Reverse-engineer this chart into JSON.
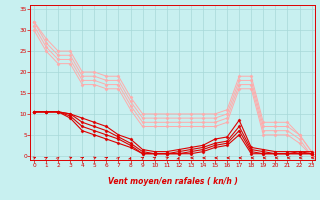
{
  "background_color": "#c8f0f0",
  "grid_color": "#a8d8d8",
  "line_color_dark": "#dd0000",
  "line_color_light": "#ffaaaa",
  "xlabel": "Vent moyen/en rafales ( kn/h )",
  "xlim": [
    -0.3,
    23.3
  ],
  "ylim": [
    -1,
    36
  ],
  "yticks": [
    0,
    5,
    10,
    15,
    20,
    25,
    30,
    35
  ],
  "xticks": [
    0,
    1,
    2,
    3,
    4,
    5,
    6,
    7,
    8,
    9,
    10,
    11,
    12,
    13,
    14,
    15,
    16,
    17,
    18,
    19,
    20,
    21,
    22,
    23
  ],
  "series_light": [
    [
      32,
      28,
      25,
      25,
      20,
      20,
      19,
      19,
      14,
      10,
      10,
      10,
      10,
      10,
      10,
      10,
      11,
      19,
      19,
      8,
      8,
      8,
      5,
      1
    ],
    [
      32,
      27,
      24,
      24,
      19,
      19,
      18,
      18,
      13,
      9,
      9,
      9,
      9,
      9,
      9,
      9,
      10,
      18,
      18,
      7,
      7,
      7,
      5,
      1
    ],
    [
      31,
      26,
      23,
      23,
      18,
      18,
      17,
      17,
      12,
      8,
      8,
      8,
      8,
      8,
      8,
      8,
      9,
      17,
      17,
      6,
      6,
      6,
      4,
      0
    ],
    [
      30,
      25,
      22,
      22,
      17,
      17,
      16,
      16,
      11,
      7,
      7,
      7,
      7,
      7,
      7,
      7,
      8,
      16,
      16,
      5,
      5,
      5,
      3,
      0
    ]
  ],
  "series_dark": [
    [
      10.5,
      10.5,
      10.5,
      10,
      9,
      8,
      7,
      5,
      4,
      1.5,
      1,
      1,
      1.5,
      2,
      2.5,
      4,
      4.5,
      8.5,
      2,
      1.5,
      1,
      1,
      1,
      1
    ],
    [
      10.5,
      10.5,
      10.5,
      10,
      8,
      7,
      6,
      4.5,
      3,
      1,
      0.5,
      0.5,
      1,
      1.5,
      2,
      3,
      3.5,
      7,
      1.5,
      1,
      0.5,
      0.5,
      1,
      0.5
    ],
    [
      10.5,
      10.5,
      10.5,
      9.5,
      7,
      6,
      5,
      4,
      2.5,
      0.5,
      0.5,
      0.5,
      0.5,
      1,
      1.5,
      2.5,
      3,
      6,
      1,
      0.5,
      0.5,
      0.5,
      0.5,
      0.5
    ],
    [
      10.5,
      10.5,
      10.5,
      9,
      6,
      5,
      4,
      3,
      2,
      0.5,
      0.5,
      0.5,
      0.5,
      0.5,
      1,
      2,
      2.5,
      5,
      0.5,
      0.5,
      0.5,
      0.5,
      0.5,
      0.5
    ]
  ],
  "wind_angles": [
    45,
    30,
    20,
    45,
    30,
    45,
    30,
    20,
    10,
    30,
    30,
    45,
    10,
    270,
    270,
    270,
    270,
    270,
    270,
    270,
    270,
    270,
    270,
    270
  ]
}
